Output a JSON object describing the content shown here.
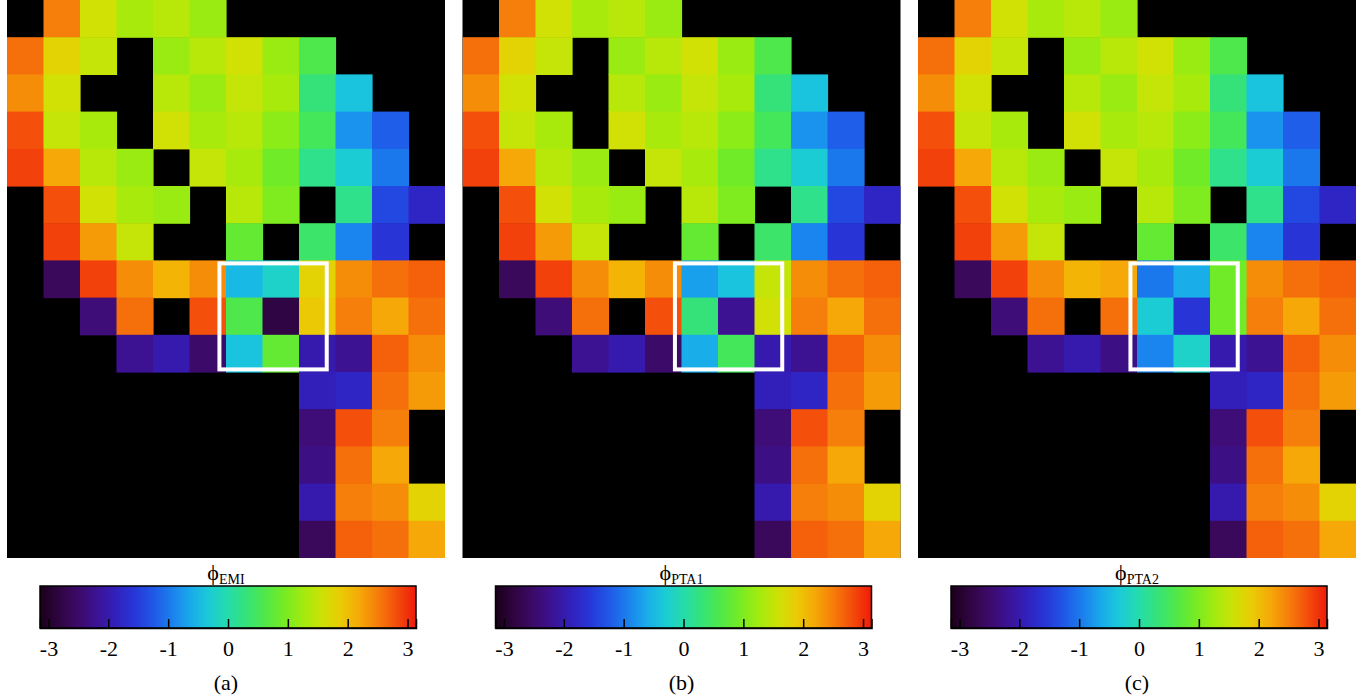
{
  "chart_data": [
    {
      "type": "heatmap",
      "title": "ϕEMI",
      "label": "(a)",
      "tick_labels": false,
      "colorbar": {
        "range": [
          -3.14159,
          3.14159
        ],
        "ticks": [
          -3,
          -2,
          -1,
          0,
          1,
          2,
          3
        ]
      },
      "cells": [
        [
          null,
          2.5,
          1.6,
          1.3,
          1.4,
          1.2,
          null,
          null,
          null,
          null,
          null,
          null
        ],
        [
          2.6,
          1.8,
          1.5,
          null,
          1.2,
          1.4,
          1.6,
          1.2,
          0.6,
          null,
          null,
          null
        ],
        [
          2.4,
          1.6,
          null,
          null,
          1.4,
          1.2,
          1.5,
          1.3,
          0.3,
          -0.4,
          null,
          null
        ],
        [
          2.8,
          1.5,
          1.3,
          null,
          1.6,
          1.3,
          1.4,
          1.1,
          0.5,
          -0.8,
          -1.2,
          null
        ],
        [
          2.9,
          2.2,
          1.4,
          1.2,
          null,
          1.5,
          1.3,
          0.9,
          0.2,
          -0.3,
          -1.0,
          null
        ],
        [
          null,
          2.8,
          1.6,
          1.3,
          1.2,
          null,
          1.4,
          1.0,
          null,
          0.2,
          -1.4,
          -1.8
        ],
        [
          null,
          2.9,
          2.3,
          1.5,
          null,
          null,
          0.8,
          null,
          0.4,
          -0.9,
          -1.6,
          null
        ],
        [
          null,
          -2.6,
          2.9,
          2.4,
          2.1,
          2.4,
          -0.5,
          -0.2,
          1.8,
          2.4,
          2.6,
          2.7
        ],
        [
          null,
          null,
          -2.4,
          2.6,
          null,
          2.8,
          0.6,
          -2.8,
          1.9,
          2.5,
          2.2,
          2.6
        ],
        [
          null,
          null,
          null,
          -2.2,
          -2.0,
          -2.5,
          -0.4,
          0.8,
          -2.0,
          -2.2,
          2.7,
          2.4
        ],
        [
          null,
          null,
          null,
          null,
          null,
          null,
          null,
          null,
          -1.9,
          -1.8,
          2.6,
          2.3
        ],
        [
          null,
          null,
          null,
          null,
          null,
          null,
          null,
          null,
          -2.4,
          2.8,
          2.5,
          null
        ],
        [
          null,
          null,
          null,
          null,
          null,
          null,
          null,
          null,
          -2.3,
          2.6,
          2.2,
          null
        ],
        [
          null,
          null,
          null,
          null,
          null,
          null,
          null,
          null,
          -2.0,
          2.5,
          2.4,
          1.8
        ],
        [
          null,
          null,
          null,
          null,
          null,
          null,
          null,
          null,
          -2.6,
          2.7,
          2.6,
          2.2
        ]
      ]
    },
    {
      "type": "heatmap",
      "title": "ϕPTA1",
      "label": "(b)",
      "tick_labels": false,
      "colorbar": {
        "range": [
          -3.14159,
          3.14159
        ],
        "ticks": [
          -3,
          -2,
          -1,
          0,
          1,
          2,
          3
        ]
      },
      "cells": [
        [
          null,
          2.5,
          1.6,
          1.3,
          1.4,
          1.2,
          null,
          null,
          null,
          null,
          null,
          null
        ],
        [
          2.6,
          1.8,
          1.5,
          null,
          1.2,
          1.4,
          1.6,
          1.2,
          0.6,
          null,
          null,
          null
        ],
        [
          2.4,
          1.6,
          null,
          null,
          1.4,
          1.2,
          1.5,
          1.3,
          0.3,
          -0.4,
          null,
          null
        ],
        [
          2.8,
          1.5,
          1.3,
          null,
          1.6,
          1.3,
          1.4,
          1.1,
          0.5,
          -0.8,
          -1.2,
          null
        ],
        [
          2.9,
          2.2,
          1.4,
          1.2,
          null,
          1.5,
          1.3,
          0.9,
          0.2,
          -0.3,
          -1.0,
          null
        ],
        [
          null,
          2.8,
          1.6,
          1.3,
          1.2,
          null,
          1.4,
          1.0,
          null,
          0.2,
          -1.4,
          -1.8
        ],
        [
          null,
          2.9,
          2.3,
          1.5,
          null,
          null,
          0.8,
          null,
          0.4,
          -0.9,
          -1.6,
          null
        ],
        [
          null,
          -2.6,
          2.9,
          2.4,
          2.1,
          2.4,
          -0.7,
          -0.4,
          1.5,
          2.4,
          2.6,
          2.7
        ],
        [
          null,
          null,
          -2.4,
          2.6,
          null,
          2.8,
          0.3,
          -2.2,
          1.6,
          2.5,
          2.2,
          2.6
        ],
        [
          null,
          null,
          null,
          -2.2,
          -2.0,
          -2.5,
          -0.6,
          0.5,
          -2.0,
          -2.2,
          2.7,
          2.4
        ],
        [
          null,
          null,
          null,
          null,
          null,
          null,
          null,
          null,
          -1.9,
          -1.8,
          2.6,
          2.3
        ],
        [
          null,
          null,
          null,
          null,
          null,
          null,
          null,
          null,
          -2.4,
          2.8,
          2.5,
          null
        ],
        [
          null,
          null,
          null,
          null,
          null,
          null,
          null,
          null,
          -2.3,
          2.6,
          2.2,
          null
        ],
        [
          null,
          null,
          null,
          null,
          null,
          null,
          null,
          null,
          -2.0,
          2.5,
          2.4,
          1.8
        ],
        [
          null,
          null,
          null,
          null,
          null,
          null,
          null,
          null,
          -2.6,
          2.7,
          2.6,
          2.2
        ]
      ]
    },
    {
      "type": "heatmap",
      "title": "ϕPTA2",
      "label": "(c)",
      "tick_labels": false,
      "colorbar": {
        "range": [
          -3.14159,
          3.14159
        ],
        "ticks": [
          -3,
          -2,
          -1,
          0,
          1,
          2,
          3
        ]
      },
      "cells": [
        [
          null,
          2.5,
          1.6,
          1.3,
          1.4,
          1.2,
          null,
          null,
          null,
          null,
          null,
          null
        ],
        [
          2.6,
          1.8,
          1.5,
          null,
          1.2,
          1.4,
          1.6,
          1.2,
          0.6,
          null,
          null,
          null
        ],
        [
          2.4,
          1.6,
          null,
          null,
          1.4,
          1.2,
          1.5,
          1.3,
          0.3,
          -0.4,
          null,
          null
        ],
        [
          2.8,
          1.5,
          1.3,
          null,
          1.6,
          1.3,
          1.4,
          1.1,
          0.5,
          -0.8,
          -1.2,
          null
        ],
        [
          2.9,
          2.2,
          1.4,
          1.2,
          null,
          1.5,
          1.3,
          0.9,
          0.2,
          -0.3,
          -1.0,
          null
        ],
        [
          null,
          2.8,
          1.6,
          1.3,
          1.2,
          null,
          1.4,
          1.0,
          null,
          0.2,
          -1.4,
          -1.8
        ],
        [
          null,
          2.9,
          2.3,
          1.5,
          null,
          null,
          0.8,
          null,
          0.4,
          -0.9,
          -1.6,
          null
        ],
        [
          null,
          -2.6,
          2.9,
          2.4,
          2.1,
          2.2,
          -1.0,
          -0.6,
          0.9,
          2.4,
          2.6,
          2.7
        ],
        [
          null,
          null,
          -2.4,
          2.6,
          null,
          2.6,
          -0.3,
          -1.6,
          0.9,
          2.5,
          2.2,
          2.6
        ],
        [
          null,
          null,
          null,
          -2.2,
          -2.0,
          -2.3,
          -0.9,
          -0.2,
          -2.0,
          -2.2,
          2.7,
          2.4
        ],
        [
          null,
          null,
          null,
          null,
          null,
          null,
          null,
          null,
          -1.9,
          -1.8,
          2.6,
          2.3
        ],
        [
          null,
          null,
          null,
          null,
          null,
          null,
          null,
          null,
          -2.4,
          2.8,
          2.5,
          null
        ],
        [
          null,
          null,
          null,
          null,
          null,
          null,
          null,
          null,
          -2.3,
          2.6,
          2.2,
          null
        ],
        [
          null,
          null,
          null,
          null,
          null,
          null,
          null,
          null,
          -2.0,
          2.5,
          2.4,
          1.8
        ],
        [
          null,
          null,
          null,
          null,
          null,
          null,
          null,
          null,
          -2.6,
          2.7,
          2.6,
          2.2
        ]
      ]
    }
  ]
}
